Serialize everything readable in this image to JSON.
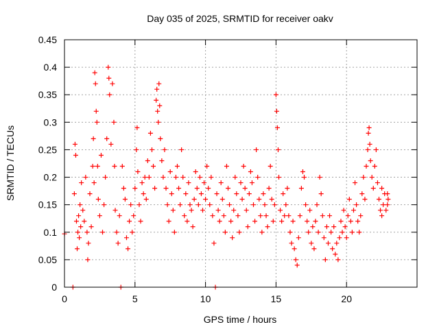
{
  "chart_data": {
    "type": "scatter",
    "title": "Day 035 of 2025, SRMTID for receiver oakv",
    "xlabel": "GPS time / hours",
    "ylabel": "SRMTID / TECUs",
    "xlim": [
      0,
      25
    ],
    "ylim": [
      0,
      0.45
    ],
    "x_ticks": [
      0,
      5,
      10,
      15,
      20
    ],
    "x_tick_labels": [
      "0",
      "5",
      "10",
      "15",
      "20"
    ],
    "y_ticks": [
      0,
      0.05,
      0.1,
      0.15,
      0.2,
      0.25,
      0.3,
      0.35,
      0.4,
      0.45
    ],
    "y_tick_labels": [
      "0",
      "0.05",
      "0.1",
      "0.15",
      "0.2",
      "0.25",
      "0.3",
      "0.35",
      "0.4",
      "0.45"
    ],
    "grid": true,
    "marker": "+",
    "color": "#ff0000",
    "series": [
      {
        "name": "SRMTID",
        "points": [
          [
            0.0,
            0.097
          ],
          [
            0.6,
            0.0
          ],
          [
            0.7,
            0.17
          ],
          [
            0.75,
            0.26
          ],
          [
            0.8,
            0.24
          ],
          [
            0.85,
            0.12
          ],
          [
            0.9,
            0.07
          ],
          [
            0.95,
            0.1
          ],
          [
            1.0,
            0.13
          ],
          [
            1.05,
            0.09
          ],
          [
            1.1,
            0.15
          ],
          [
            1.15,
            0.11
          ],
          [
            1.2,
            0.19
          ],
          [
            1.3,
            0.14
          ],
          [
            1.4,
            0.12
          ],
          [
            1.5,
            0.2
          ],
          [
            1.6,
            0.1
          ],
          [
            1.65,
            0.05
          ],
          [
            1.7,
            0.08
          ],
          [
            1.8,
            0.17
          ],
          [
            1.9,
            0.11
          ],
          [
            2.0,
            0.22
          ],
          [
            2.05,
            0.27
          ],
          [
            2.1,
            0.19
          ],
          [
            2.15,
            0.39
          ],
          [
            2.2,
            0.37
          ],
          [
            2.25,
            0.32
          ],
          [
            2.3,
            0.3
          ],
          [
            2.35,
            0.22
          ],
          [
            2.4,
            0.16
          ],
          [
            2.5,
            0.13
          ],
          [
            2.6,
            0.24
          ],
          [
            2.7,
            0.1
          ],
          [
            2.8,
            0.15
          ],
          [
            2.9,
            0.2
          ],
          [
            3.0,
            0.27
          ],
          [
            3.1,
            0.4
          ],
          [
            3.15,
            0.38
          ],
          [
            3.2,
            0.35
          ],
          [
            3.3,
            0.26
          ],
          [
            3.4,
            0.37
          ],
          [
            3.5,
            0.3
          ],
          [
            3.55,
            0.22
          ],
          [
            3.6,
            0.14
          ],
          [
            3.7,
            0.1
          ],
          [
            3.8,
            0.08
          ],
          [
            3.9,
            0.13
          ],
          [
            4.0,
            0.0
          ],
          [
            4.1,
            0.22
          ],
          [
            4.2,
            0.18
          ],
          [
            4.3,
            0.16
          ],
          [
            4.4,
            0.09
          ],
          [
            4.5,
            0.07
          ],
          [
            4.6,
            0.12
          ],
          [
            4.7,
            0.15
          ],
          [
            4.8,
            0.1
          ],
          [
            4.9,
            0.13
          ],
          [
            5.0,
            0.18
          ],
          [
            5.1,
            0.25
          ],
          [
            5.15,
            0.29
          ],
          [
            5.2,
            0.21
          ],
          [
            5.3,
            0.15
          ],
          [
            5.4,
            0.12
          ],
          [
            5.5,
            0.19
          ],
          [
            5.6,
            0.17
          ],
          [
            5.7,
            0.2
          ],
          [
            5.8,
            0.16
          ],
          [
            5.9,
            0.23
          ],
          [
            6.0,
            0.2
          ],
          [
            6.1,
            0.28
          ],
          [
            6.2,
            0.25
          ],
          [
            6.3,
            0.22
          ],
          [
            6.4,
            0.18
          ],
          [
            6.5,
            0.34
          ],
          [
            6.55,
            0.36
          ],
          [
            6.6,
            0.32
          ],
          [
            6.65,
            0.3
          ],
          [
            6.7,
            0.37
          ],
          [
            6.75,
            0.33
          ],
          [
            6.8,
            0.27
          ],
          [
            6.9,
            0.23
          ],
          [
            7.0,
            0.2
          ],
          [
            7.1,
            0.25
          ],
          [
            7.2,
            0.18
          ],
          [
            7.3,
            0.15
          ],
          [
            7.4,
            0.12
          ],
          [
            7.5,
            0.21
          ],
          [
            7.6,
            0.17
          ],
          [
            7.7,
            0.14
          ],
          [
            7.8,
            0.1
          ],
          [
            7.9,
            0.2
          ],
          [
            8.0,
            0.22
          ],
          [
            8.1,
            0.18
          ],
          [
            8.2,
            0.15
          ],
          [
            8.3,
            0.25
          ],
          [
            8.4,
            0.2
          ],
          [
            8.5,
            0.13
          ],
          [
            8.6,
            0.17
          ],
          [
            8.7,
            0.12
          ],
          [
            8.8,
            0.19
          ],
          [
            8.9,
            0.15
          ],
          [
            9.0,
            0.14
          ],
          [
            9.1,
            0.11
          ],
          [
            9.2,
            0.16
          ],
          [
            9.3,
            0.21
          ],
          [
            9.4,
            0.18
          ],
          [
            9.5,
            0.15
          ],
          [
            9.6,
            0.2
          ],
          [
            9.7,
            0.17
          ],
          [
            9.8,
            0.14
          ],
          [
            9.9,
            0.19
          ],
          [
            10.0,
            0.16
          ],
          [
            10.1,
            0.22
          ],
          [
            10.2,
            0.18
          ],
          [
            10.3,
            0.15
          ],
          [
            10.4,
            0.2
          ],
          [
            10.5,
            0.13
          ],
          [
            10.6,
            0.08
          ],
          [
            10.7,
            0.0
          ],
          [
            10.8,
            0.17
          ],
          [
            10.9,
            0.14
          ],
          [
            11.0,
            0.12
          ],
          [
            11.1,
            0.19
          ],
          [
            11.2,
            0.16
          ],
          [
            11.3,
            0.13
          ],
          [
            11.4,
            0.1
          ],
          [
            11.5,
            0.22
          ],
          [
            11.6,
            0.18
          ],
          [
            11.7,
            0.15
          ],
          [
            11.8,
            0.12
          ],
          [
            11.9,
            0.09
          ],
          [
            12.0,
            0.14
          ],
          [
            12.1,
            0.2
          ],
          [
            12.2,
            0.17
          ],
          [
            12.3,
            0.13
          ],
          [
            12.4,
            0.1
          ],
          [
            12.5,
            0.19
          ],
          [
            12.6,
            0.16
          ],
          [
            12.7,
            0.22
          ],
          [
            12.8,
            0.18
          ],
          [
            12.9,
            0.14
          ],
          [
            13.0,
            0.11
          ],
          [
            13.1,
            0.17
          ],
          [
            13.2,
            0.21
          ],
          [
            13.3,
            0.19
          ],
          [
            13.4,
            0.15
          ],
          [
            13.5,
            0.12
          ],
          [
            13.6,
            0.25
          ],
          [
            13.7,
            0.2
          ],
          [
            13.8,
            0.16
          ],
          [
            13.9,
            0.13
          ],
          [
            14.0,
            0.1
          ],
          [
            14.1,
            0.17
          ],
          [
            14.2,
            0.15
          ],
          [
            14.3,
            0.13
          ],
          [
            14.4,
            0.11
          ],
          [
            14.5,
            0.18
          ],
          [
            14.6,
            0.22
          ],
          [
            14.7,
            0.16
          ],
          [
            14.8,
            0.12
          ],
          [
            14.9,
            0.15
          ],
          [
            15.0,
            0.35
          ],
          [
            15.05,
            0.32
          ],
          [
            15.1,
            0.29
          ],
          [
            15.15,
            0.25
          ],
          [
            15.2,
            0.2
          ],
          [
            15.3,
            0.14
          ],
          [
            15.4,
            0.12
          ],
          [
            15.5,
            0.17
          ],
          [
            15.6,
            0.13
          ],
          [
            15.7,
            0.15
          ],
          [
            15.8,
            0.18
          ],
          [
            15.9,
            0.13
          ],
          [
            16.0,
            0.1
          ],
          [
            16.1,
            0.08
          ],
          [
            16.2,
            0.12
          ],
          [
            16.3,
            0.07
          ],
          [
            16.4,
            0.05
          ],
          [
            16.5,
            0.04
          ],
          [
            16.6,
            0.09
          ],
          [
            16.7,
            0.13
          ],
          [
            16.8,
            0.18
          ],
          [
            16.9,
            0.21
          ],
          [
            17.0,
            0.2
          ],
          [
            17.1,
            0.15
          ],
          [
            17.2,
            0.12
          ],
          [
            17.3,
            0.1
          ],
          [
            17.4,
            0.14
          ],
          [
            17.5,
            0.08
          ],
          [
            17.6,
            0.11
          ],
          [
            17.7,
            0.07
          ],
          [
            17.8,
            0.12
          ],
          [
            17.9,
            0.15
          ],
          [
            18.0,
            0.1
          ],
          [
            18.1,
            0.2
          ],
          [
            18.2,
            0.17
          ],
          [
            18.3,
            0.13
          ],
          [
            18.4,
            0.09
          ],
          [
            18.5,
            0.05
          ],
          [
            18.6,
            0.11
          ],
          [
            18.7,
            0.08
          ],
          [
            18.8,
            0.13
          ],
          [
            18.9,
            0.1
          ],
          [
            19.0,
            0.07
          ],
          [
            19.1,
            0.11
          ],
          [
            19.2,
            0.06
          ],
          [
            19.3,
            0.08
          ],
          [
            19.4,
            0.05
          ],
          [
            19.5,
            0.09
          ],
          [
            19.6,
            0.12
          ],
          [
            19.7,
            0.1
          ],
          [
            19.8,
            0.14
          ],
          [
            19.9,
            0.11
          ],
          [
            20.0,
            0.09
          ],
          [
            20.1,
            0.13
          ],
          [
            20.2,
            0.16
          ],
          [
            20.3,
            0.12
          ],
          [
            20.4,
            0.1
          ],
          [
            20.5,
            0.14
          ],
          [
            20.6,
            0.19
          ],
          [
            20.7,
            0.15
          ],
          [
            20.8,
            0.12
          ],
          [
            20.9,
            0.1
          ],
          [
            21.0,
            0.13
          ],
          [
            21.1,
            0.17
          ],
          [
            21.2,
            0.2
          ],
          [
            21.3,
            0.16
          ],
          [
            21.4,
            0.22
          ],
          [
            21.5,
            0.25
          ],
          [
            21.55,
            0.28
          ],
          [
            21.6,
            0.29
          ],
          [
            21.65,
            0.26
          ],
          [
            21.7,
            0.23
          ],
          [
            21.8,
            0.2
          ],
          [
            21.9,
            0.18
          ],
          [
            22.0,
            0.22
          ],
          [
            22.1,
            0.25
          ],
          [
            22.2,
            0.19
          ],
          [
            22.3,
            0.16
          ],
          [
            22.4,
            0.14
          ],
          [
            22.5,
            0.18
          ],
          [
            22.6,
            0.15
          ],
          [
            22.7,
            0.17
          ],
          [
            22.8,
            0.14
          ],
          [
            22.9,
            0.15
          ],
          [
            22.95,
            0.16
          ],
          [
            22.9,
            0.17
          ],
          [
            22.5,
            0.13
          ]
        ]
      }
    ]
  }
}
